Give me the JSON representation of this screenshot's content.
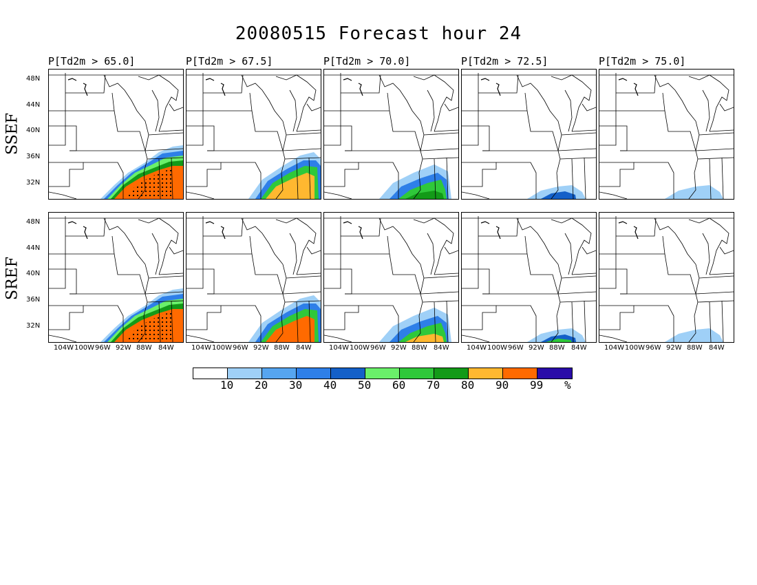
{
  "title": "20080515 Forecast hour 24",
  "row_labels": [
    "SSEF",
    "SREF"
  ],
  "thresholds": [
    "P[Td2m > 65.0]",
    "P[Td2m > 67.5]",
    "P[Td2m > 70.0]",
    "P[Td2m > 72.5]",
    "P[Td2m > 75.0]"
  ],
  "lat_labels": [
    "48N",
    "44N",
    "40N",
    "36N",
    "32N"
  ],
  "lon_labels": [
    "104W",
    "100W",
    "96W",
    "92W",
    "88W",
    "84W"
  ],
  "legend": {
    "colors": [
      "#ffffff",
      "#9fd0f7",
      "#56a5f0",
      "#2e7fe8",
      "#1460c8",
      "#6af06a",
      "#2fc83a",
      "#139a18",
      "#ffb830",
      "#ff6a00",
      "#2a0ca8"
    ],
    "labels": [
      "10",
      "20",
      "30",
      "40",
      "50",
      "60",
      "70",
      "80",
      "90",
      "99",
      "%"
    ]
  },
  "panels": {
    "ssef": [
      {
        "threshold": "P[Td2m > 65.0]",
        "coverage": "large",
        "peak": "99"
      },
      {
        "threshold": "P[Td2m > 67.5]",
        "coverage": "medium",
        "peak": "90"
      },
      {
        "threshold": "P[Td2m > 70.0]",
        "coverage": "small",
        "peak": "80"
      },
      {
        "threshold": "P[Td2m > 72.5]",
        "coverage": "trace",
        "peak": "50"
      },
      {
        "threshold": "P[Td2m > 75.0]",
        "coverage": "trace",
        "peak": "20"
      }
    ],
    "sref": [
      {
        "threshold": "P[Td2m > 65.0]",
        "coverage": "large",
        "peak": "99"
      },
      {
        "threshold": "P[Td2m > 67.5]",
        "coverage": "medium",
        "peak": "99"
      },
      {
        "threshold": "P[Td2m > 70.0]",
        "coverage": "small",
        "peak": "90"
      },
      {
        "threshold": "P[Td2m > 72.5]",
        "coverage": "trace",
        "peak": "70"
      },
      {
        "threshold": "P[Td2m > 75.0]",
        "coverage": "trace",
        "peak": "20"
      }
    ]
  }
}
